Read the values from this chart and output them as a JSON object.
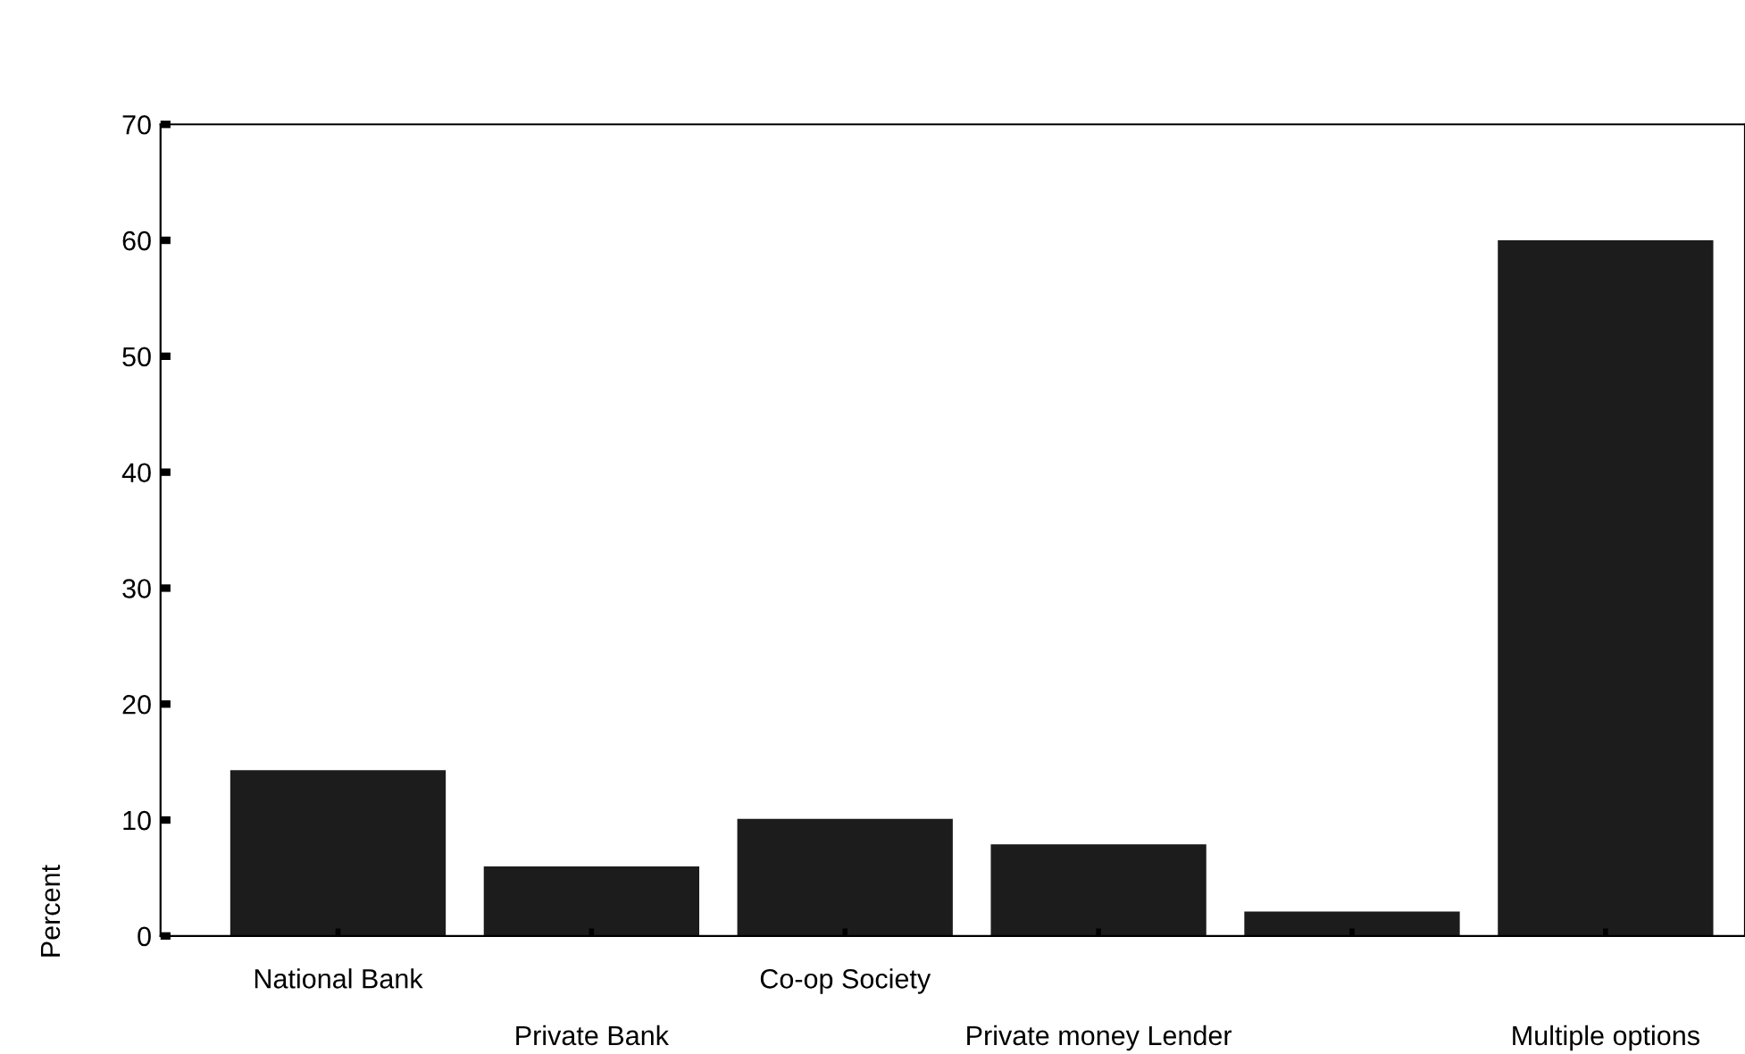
{
  "chart_data": {
    "type": "bar",
    "ylabel": "Percent",
    "categories": [
      "National Bank",
      "Private Bank",
      "Co-op Society",
      "Private money Lender",
      null,
      "Multiple options"
    ],
    "values": [
      14.3,
      6.0,
      10.1,
      7.9,
      2.1,
      60.0
    ],
    "color": "#1c1c1c",
    "ylim": [
      0,
      70
    ],
    "yticks": [
      0,
      10,
      20,
      30,
      40,
      50,
      60,
      70
    ],
    "grid": false,
    "legend": false
  }
}
